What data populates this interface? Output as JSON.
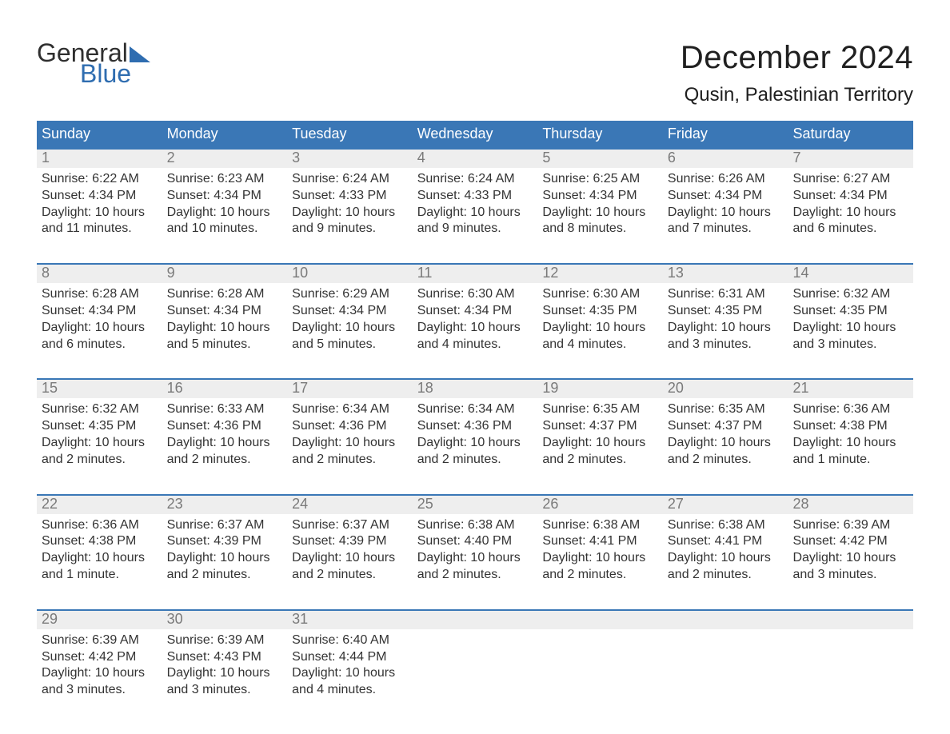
{
  "brand": {
    "word1": "General",
    "word2": "Blue",
    "tri_color": "#2f6db0"
  },
  "title": "December 2024",
  "location": "Qusin, Palestinian Territory",
  "colors": {
    "header_bg": "#3a77b6",
    "header_text": "#ffffff",
    "daynum_bg": "#eeeeee",
    "daynum_text": "#7a7a7a",
    "body_text": "#333333",
    "week_border": "#3a77b6",
    "page_bg": "#ffffff"
  },
  "dow": [
    "Sunday",
    "Monday",
    "Tuesday",
    "Wednesday",
    "Thursday",
    "Friday",
    "Saturday"
  ],
  "weeks": [
    [
      {
        "n": "1",
        "sr": "Sunrise: 6:22 AM",
        "ss": "Sunset: 4:34 PM",
        "dl": "Daylight: 10 hours and 11 minutes."
      },
      {
        "n": "2",
        "sr": "Sunrise: 6:23 AM",
        "ss": "Sunset: 4:34 PM",
        "dl": "Daylight: 10 hours and 10 minutes."
      },
      {
        "n": "3",
        "sr": "Sunrise: 6:24 AM",
        "ss": "Sunset: 4:33 PM",
        "dl": "Daylight: 10 hours and 9 minutes."
      },
      {
        "n": "4",
        "sr": "Sunrise: 6:24 AM",
        "ss": "Sunset: 4:33 PM",
        "dl": "Daylight: 10 hours and 9 minutes."
      },
      {
        "n": "5",
        "sr": "Sunrise: 6:25 AM",
        "ss": "Sunset: 4:34 PM",
        "dl": "Daylight: 10 hours and 8 minutes."
      },
      {
        "n": "6",
        "sr": "Sunrise: 6:26 AM",
        "ss": "Sunset: 4:34 PM",
        "dl": "Daylight: 10 hours and 7 minutes."
      },
      {
        "n": "7",
        "sr": "Sunrise: 6:27 AM",
        "ss": "Sunset: 4:34 PM",
        "dl": "Daylight: 10 hours and 6 minutes."
      }
    ],
    [
      {
        "n": "8",
        "sr": "Sunrise: 6:28 AM",
        "ss": "Sunset: 4:34 PM",
        "dl": "Daylight: 10 hours and 6 minutes."
      },
      {
        "n": "9",
        "sr": "Sunrise: 6:28 AM",
        "ss": "Sunset: 4:34 PM",
        "dl": "Daylight: 10 hours and 5 minutes."
      },
      {
        "n": "10",
        "sr": "Sunrise: 6:29 AM",
        "ss": "Sunset: 4:34 PM",
        "dl": "Daylight: 10 hours and 5 minutes."
      },
      {
        "n": "11",
        "sr": "Sunrise: 6:30 AM",
        "ss": "Sunset: 4:34 PM",
        "dl": "Daylight: 10 hours and 4 minutes."
      },
      {
        "n": "12",
        "sr": "Sunrise: 6:30 AM",
        "ss": "Sunset: 4:35 PM",
        "dl": "Daylight: 10 hours and 4 minutes."
      },
      {
        "n": "13",
        "sr": "Sunrise: 6:31 AM",
        "ss": "Sunset: 4:35 PM",
        "dl": "Daylight: 10 hours and 3 minutes."
      },
      {
        "n": "14",
        "sr": "Sunrise: 6:32 AM",
        "ss": "Sunset: 4:35 PM",
        "dl": "Daylight: 10 hours and 3 minutes."
      }
    ],
    [
      {
        "n": "15",
        "sr": "Sunrise: 6:32 AM",
        "ss": "Sunset: 4:35 PM",
        "dl": "Daylight: 10 hours and 2 minutes."
      },
      {
        "n": "16",
        "sr": "Sunrise: 6:33 AM",
        "ss": "Sunset: 4:36 PM",
        "dl": "Daylight: 10 hours and 2 minutes."
      },
      {
        "n": "17",
        "sr": "Sunrise: 6:34 AM",
        "ss": "Sunset: 4:36 PM",
        "dl": "Daylight: 10 hours and 2 minutes."
      },
      {
        "n": "18",
        "sr": "Sunrise: 6:34 AM",
        "ss": "Sunset: 4:36 PM",
        "dl": "Daylight: 10 hours and 2 minutes."
      },
      {
        "n": "19",
        "sr": "Sunrise: 6:35 AM",
        "ss": "Sunset: 4:37 PM",
        "dl": "Daylight: 10 hours and 2 minutes."
      },
      {
        "n": "20",
        "sr": "Sunrise: 6:35 AM",
        "ss": "Sunset: 4:37 PM",
        "dl": "Daylight: 10 hours and 2 minutes."
      },
      {
        "n": "21",
        "sr": "Sunrise: 6:36 AM",
        "ss": "Sunset: 4:38 PM",
        "dl": "Daylight: 10 hours and 1 minute."
      }
    ],
    [
      {
        "n": "22",
        "sr": "Sunrise: 6:36 AM",
        "ss": "Sunset: 4:38 PM",
        "dl": "Daylight: 10 hours and 1 minute."
      },
      {
        "n": "23",
        "sr": "Sunrise: 6:37 AM",
        "ss": "Sunset: 4:39 PM",
        "dl": "Daylight: 10 hours and 2 minutes."
      },
      {
        "n": "24",
        "sr": "Sunrise: 6:37 AM",
        "ss": "Sunset: 4:39 PM",
        "dl": "Daylight: 10 hours and 2 minutes."
      },
      {
        "n": "25",
        "sr": "Sunrise: 6:38 AM",
        "ss": "Sunset: 4:40 PM",
        "dl": "Daylight: 10 hours and 2 minutes."
      },
      {
        "n": "26",
        "sr": "Sunrise: 6:38 AM",
        "ss": "Sunset: 4:41 PM",
        "dl": "Daylight: 10 hours and 2 minutes."
      },
      {
        "n": "27",
        "sr": "Sunrise: 6:38 AM",
        "ss": "Sunset: 4:41 PM",
        "dl": "Daylight: 10 hours and 2 minutes."
      },
      {
        "n": "28",
        "sr": "Sunrise: 6:39 AM",
        "ss": "Sunset: 4:42 PM",
        "dl": "Daylight: 10 hours and 3 minutes."
      }
    ],
    [
      {
        "n": "29",
        "sr": "Sunrise: 6:39 AM",
        "ss": "Sunset: 4:42 PM",
        "dl": "Daylight: 10 hours and 3 minutes."
      },
      {
        "n": "30",
        "sr": "Sunrise: 6:39 AM",
        "ss": "Sunset: 4:43 PM",
        "dl": "Daylight: 10 hours and 3 minutes."
      },
      {
        "n": "31",
        "sr": "Sunrise: 6:40 AM",
        "ss": "Sunset: 4:44 PM",
        "dl": "Daylight: 10 hours and 4 minutes."
      },
      null,
      null,
      null,
      null
    ]
  ]
}
